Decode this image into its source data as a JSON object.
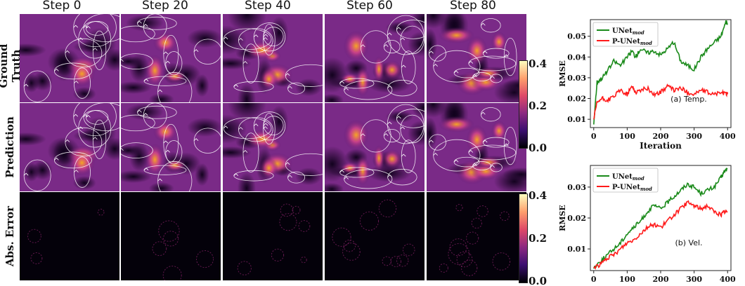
{
  "columns": [
    "Step 0",
    "Step 20",
    "Step 40",
    "Step 60",
    "Step 80"
  ],
  "rows": [
    "Ground Truth",
    "Prediction",
    "Abs. Error"
  ],
  "colorbars": [
    {
      "ticks": [
        "0.4",
        "0.2",
        "0.0"
      ],
      "colormap": "plasma-like"
    },
    {
      "ticks": [
        "0.4",
        "0.2",
        "0.0"
      ],
      "colormap": "plasma-like"
    }
  ],
  "colors": {
    "green": "#1a8a1a",
    "red": "#ff1a1a"
  },
  "chart_data": [
    {
      "type": "line",
      "annotation": "(a) Temp.",
      "xlabel": "Iteration",
      "ylabel": "RMSE",
      "xlim": [
        -10,
        410
      ],
      "ylim": [
        0.006,
        0.058
      ],
      "xticks": [
        "0",
        "100",
        "200",
        "300",
        "400"
      ],
      "yticks": [
        "0.01",
        "0.02",
        "0.03",
        "0.04",
        "0.05"
      ],
      "legend": "top-left",
      "series": [
        {
          "name": "UNet",
          "subscript": "mod",
          "color": "#1a8a1a",
          "x": [
            0,
            10,
            25,
            40,
            60,
            80,
            100,
            115,
            125,
            140,
            160,
            180,
            200,
            220,
            240,
            260,
            280,
            300,
            320,
            340,
            360,
            380,
            395,
            400
          ],
          "y": [
            0.008,
            0.028,
            0.03,
            0.033,
            0.038,
            0.036,
            0.04,
            0.043,
            0.04,
            0.044,
            0.042,
            0.043,
            0.041,
            0.044,
            0.047,
            0.038,
            0.036,
            0.034,
            0.04,
            0.044,
            0.047,
            0.05,
            0.057,
            0.056
          ]
        },
        {
          "name": "P-UNet",
          "subscript": "mod",
          "color": "#ff1a1a",
          "x": [
            0,
            10,
            25,
            40,
            60,
            80,
            100,
            115,
            125,
            140,
            160,
            180,
            200,
            220,
            240,
            260,
            280,
            300,
            320,
            340,
            360,
            380,
            395,
            400
          ],
          "y": [
            0.01,
            0.018,
            0.02,
            0.019,
            0.021,
            0.024,
            0.022,
            0.026,
            0.023,
            0.024,
            0.025,
            0.022,
            0.023,
            0.026,
            0.024,
            0.025,
            0.023,
            0.022,
            0.024,
            0.023,
            0.022,
            0.023,
            0.022,
            0.023
          ]
        }
      ]
    },
    {
      "type": "line",
      "annotation": "(b) Vel.",
      "xlabel": "",
      "ylabel": "RMSE",
      "xlim": [
        -10,
        410
      ],
      "ylim": [
        0.003,
        0.037
      ],
      "xticks": [
        "0",
        "100",
        "200",
        "300",
        "400"
      ],
      "yticks": [
        "0.01",
        "0.02",
        "0.03"
      ],
      "legend": "top-left",
      "series": [
        {
          "name": "UNet",
          "subscript": "mod",
          "color": "#1a8a1a",
          "x": [
            0,
            20,
            40,
            60,
            80,
            100,
            120,
            140,
            160,
            180,
            200,
            220,
            240,
            260,
            280,
            300,
            320,
            340,
            360,
            380,
            390,
            400
          ],
          "y": [
            0.004,
            0.006,
            0.008,
            0.01,
            0.012,
            0.015,
            0.017,
            0.019,
            0.022,
            0.024,
            0.023,
            0.025,
            0.027,
            0.029,
            0.031,
            0.03,
            0.028,
            0.029,
            0.03,
            0.033,
            0.035,
            0.036
          ]
        },
        {
          "name": "P-UNet",
          "subscript": "mod",
          "color": "#ff1a1a",
          "x": [
            0,
            20,
            40,
            60,
            80,
            100,
            120,
            140,
            160,
            180,
            200,
            220,
            240,
            260,
            280,
            300,
            320,
            340,
            360,
            380,
            390,
            400
          ],
          "y": [
            0.004,
            0.005,
            0.007,
            0.008,
            0.01,
            0.012,
            0.013,
            0.015,
            0.017,
            0.018,
            0.017,
            0.019,
            0.021,
            0.023,
            0.025,
            0.024,
            0.023,
            0.024,
            0.022,
            0.021,
            0.022,
            0.022
          ]
        }
      ]
    }
  ]
}
